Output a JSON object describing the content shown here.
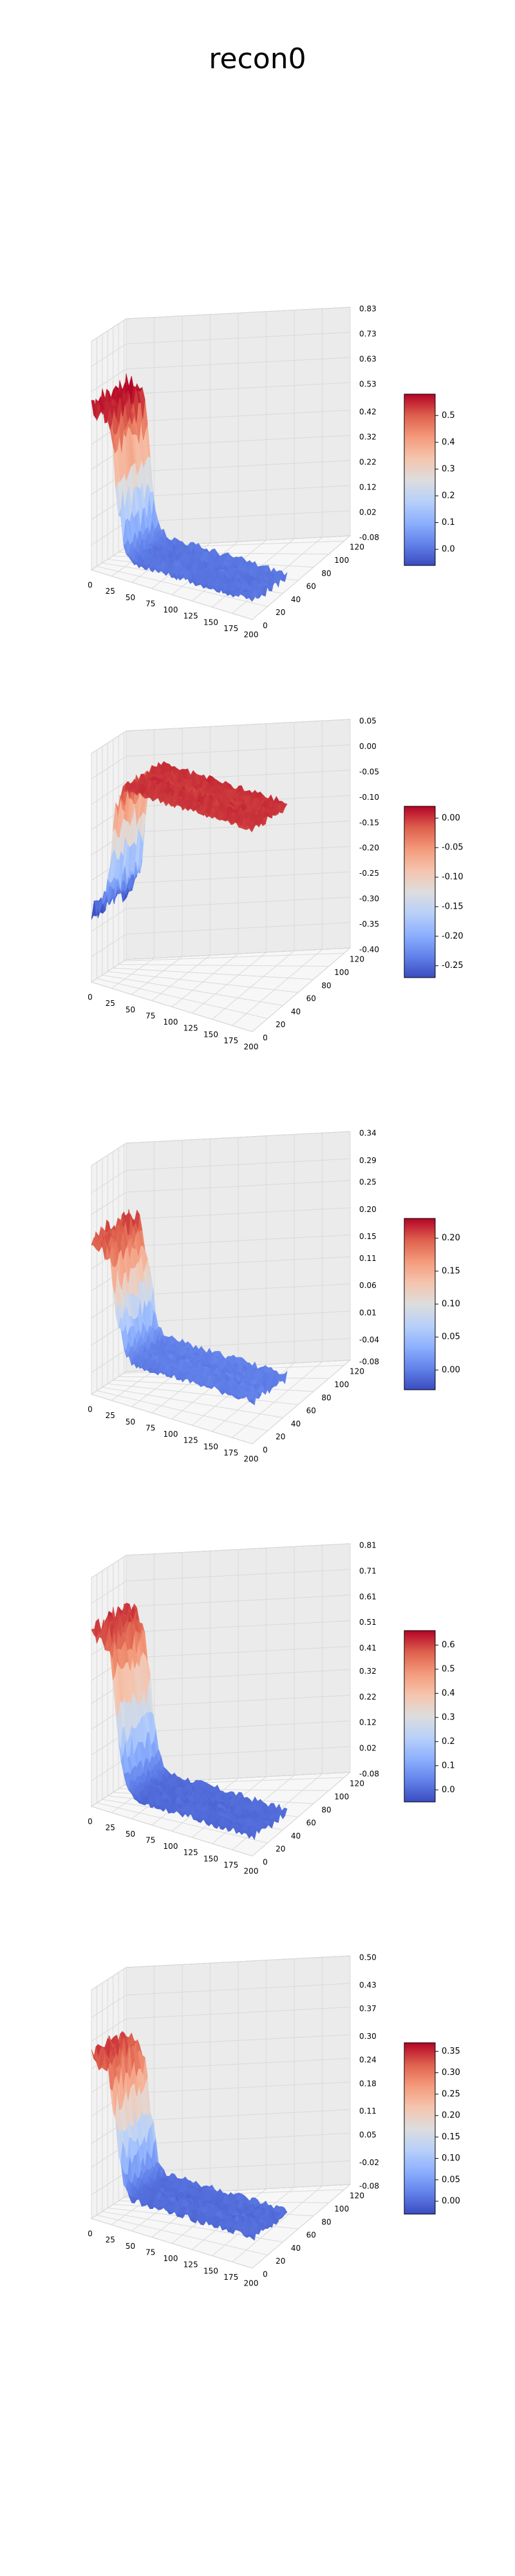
{
  "figure": {
    "title": "recon0"
  },
  "chart_data": [
    {
      "type": "surface",
      "subplot": 1,
      "x_ticks": [
        0,
        25,
        50,
        75,
        100,
        125,
        150,
        175,
        200
      ],
      "y_ticks": [
        0,
        20,
        40,
        60,
        80,
        100,
        120
      ],
      "z_ticks": [
        -0.08,
        0.02,
        0.12,
        0.22,
        0.32,
        0.42,
        0.53,
        0.63,
        0.73,
        0.83
      ],
      "colorbar_ticks": [
        0.0,
        0.1,
        0.2,
        0.3,
        0.4,
        0.5
      ],
      "colorbar_range": [
        -0.06,
        0.58
      ],
      "colormap": "coolwarm",
      "profile": {
        "x": [
          0,
          12,
          20,
          26,
          30,
          35,
          40,
          45,
          55,
          200
        ],
        "z": [
          0.56,
          0.56,
          0.55,
          0.46,
          0.3,
          0.16,
          0.06,
          0.02,
          0.0,
          0.0
        ]
      }
    },
    {
      "type": "surface",
      "subplot": 2,
      "x_ticks": [
        0,
        25,
        50,
        75,
        100,
        125,
        150,
        175,
        200
      ],
      "y_ticks": [
        0,
        20,
        40,
        60,
        80,
        100,
        120
      ],
      "z_ticks": [
        -0.4,
        -0.35,
        -0.3,
        -0.25,
        -0.2,
        -0.15,
        -0.1,
        -0.05,
        0.0,
        0.05
      ],
      "colorbar_ticks": [
        -0.25,
        -0.2,
        -0.15,
        -0.1,
        -0.05,
        0.0
      ],
      "colorbar_range": [
        -0.27,
        0.02
      ],
      "colormap": "coolwarm",
      "profile": {
        "x": [
          0,
          10,
          20,
          25,
          30,
          40,
          60,
          200
        ],
        "z": [
          -0.26,
          -0.24,
          -0.2,
          -0.12,
          -0.04,
          0.0,
          0.0,
          0.0
        ]
      }
    },
    {
      "type": "surface",
      "subplot": 3,
      "x_ticks": [
        0,
        25,
        50,
        75,
        100,
        125,
        150,
        175,
        200
      ],
      "y_ticks": [
        0,
        20,
        40,
        60,
        80,
        100,
        120
      ],
      "z_ticks": [
        -0.08,
        -0.04,
        0.01,
        0.06,
        0.11,
        0.15,
        0.2,
        0.25,
        0.29,
        0.34
      ],
      "colorbar_ticks": [
        0.0,
        0.05,
        0.1,
        0.15,
        0.2
      ],
      "colorbar_range": [
        -0.03,
        0.23
      ],
      "colormap": "coolwarm",
      "profile": {
        "x": [
          0,
          12,
          20,
          26,
          30,
          35,
          40,
          50,
          200
        ],
        "z": [
          0.2,
          0.2,
          0.19,
          0.14,
          0.1,
          0.05,
          0.02,
          0.0,
          0.0
        ]
      }
    },
    {
      "type": "surface",
      "subplot": 4,
      "x_ticks": [
        0,
        25,
        50,
        75,
        100,
        125,
        150,
        175,
        200
      ],
      "y_ticks": [
        0,
        20,
        40,
        60,
        80,
        100,
        120
      ],
      "z_ticks": [
        -0.08,
        0.02,
        0.12,
        0.22,
        0.32,
        0.41,
        0.51,
        0.61,
        0.71,
        0.81
      ],
      "colorbar_ticks": [
        0.0,
        0.1,
        0.2,
        0.3,
        0.4,
        0.5,
        0.6
      ],
      "colorbar_range": [
        -0.05,
        0.66
      ],
      "colormap": "coolwarm",
      "profile": {
        "x": [
          0,
          12,
          20,
          26,
          30,
          35,
          40,
          45,
          55,
          200
        ],
        "z": [
          0.6,
          0.6,
          0.58,
          0.48,
          0.32,
          0.18,
          0.08,
          0.03,
          0.0,
          0.0
        ]
      }
    },
    {
      "type": "surface",
      "subplot": 5,
      "x_ticks": [
        0,
        25,
        50,
        75,
        100,
        125,
        150,
        175,
        200
      ],
      "y_ticks": [
        0,
        20,
        40,
        60,
        80,
        100,
        120
      ],
      "z_ticks": [
        -0.08,
        -0.02,
        0.05,
        0.11,
        0.18,
        0.24,
        0.3,
        0.37,
        0.43,
        0.5
      ],
      "colorbar_ticks": [
        0.0,
        0.05,
        0.1,
        0.15,
        0.2,
        0.25,
        0.3,
        0.35
      ],
      "colorbar_range": [
        -0.03,
        0.37
      ],
      "colormap": "coolwarm",
      "profile": {
        "x": [
          0,
          12,
          20,
          26,
          30,
          35,
          40,
          50,
          200
        ],
        "z": [
          0.33,
          0.33,
          0.31,
          0.24,
          0.16,
          0.08,
          0.03,
          0.0,
          0.0
        ]
      }
    }
  ]
}
